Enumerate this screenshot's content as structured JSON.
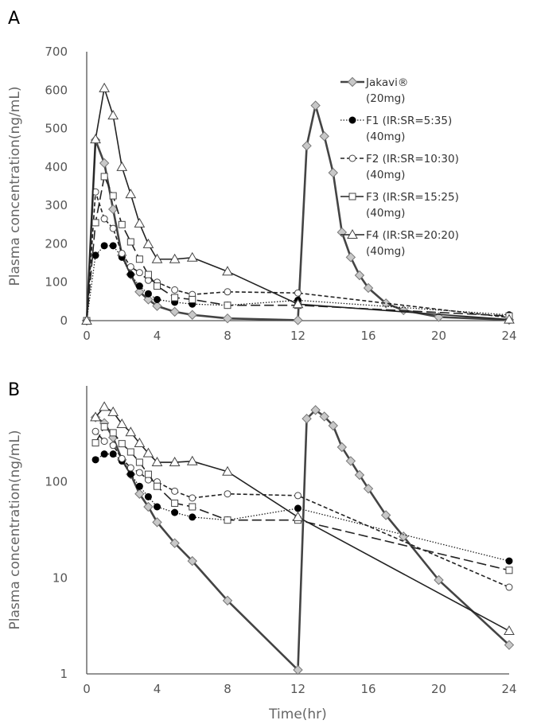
{
  "chart_data": [
    {
      "panel": "A",
      "type": "line",
      "yscale": "linear",
      "ylabel": "Plasma concentration(ng/mL)",
      "xlabel": "",
      "xlim": [
        0,
        24
      ],
      "ylim": [
        0,
        700
      ],
      "xticks": [
        0,
        4,
        8,
        12,
        16,
        20,
        24
      ],
      "yticks": [
        0,
        100,
        200,
        300,
        400,
        500,
        600,
        700
      ],
      "legend_position": "top-right"
    },
    {
      "panel": "B",
      "type": "line",
      "yscale": "log",
      "ylabel": "Plasma concentration(ng/mL)",
      "xlabel": "Time(hr)",
      "xlim": [
        0,
        24
      ],
      "ylim": [
        1,
        1000
      ],
      "xticks": [
        0,
        4,
        8,
        12,
        16,
        20,
        24
      ],
      "yticks": [
        1,
        10,
        100
      ]
    }
  ],
  "series": [
    {
      "name": "Jakavi®",
      "dose": "(20mg)",
      "marker": "diamond",
      "line": "solid-thick",
      "color": "#444444",
      "marker_fill": "#c8c8c8",
      "x": [
        0,
        0.5,
        1,
        1.5,
        2,
        2.5,
        3,
        3.5,
        4,
        5,
        6,
        8,
        12,
        12.5,
        13,
        13.5,
        14,
        14.5,
        15,
        15.5,
        16,
        17,
        18,
        20,
        24
      ],
      "y": [
        0,
        470,
        410,
        290,
        170,
        120,
        75,
        55,
        38,
        23,
        15,
        5.8,
        1.1,
        455,
        560,
        480,
        385,
        230,
        165,
        118,
        85,
        45,
        27,
        9.5,
        2
      ]
    },
    {
      "name": "F1 (IR:SR=5:35)",
      "dose": "(40mg)",
      "marker": "circle-filled",
      "line": "dotted",
      "color": "#222222",
      "marker_fill": "#000000",
      "x": [
        0,
        0.5,
        1,
        1.5,
        2,
        2.5,
        3,
        3.5,
        4,
        5,
        6,
        8,
        12,
        24
      ],
      "y": [
        0,
        170,
        195,
        195,
        165,
        120,
        90,
        70,
        55,
        48,
        43,
        40,
        53,
        15
      ]
    },
    {
      "name": "F2 (IR:SR=10:30)",
      "dose": "(40mg)",
      "marker": "circle-open",
      "line": "short-dash",
      "color": "#222222",
      "marker_fill": "#ffffff",
      "x": [
        0,
        0.5,
        1,
        1.5,
        2,
        2.5,
        3,
        3.5,
        4,
        5,
        6,
        8,
        12,
        24
      ],
      "y": [
        0,
        335,
        265,
        240,
        175,
        140,
        125,
        105,
        100,
        80,
        68,
        75,
        72,
        8
      ]
    },
    {
      "name": "F3 (IR:SR=15:25)",
      "dose": "(40mg)",
      "marker": "square-open",
      "line": "long-dash",
      "color": "#222222",
      "marker_fill": "#ffffff",
      "x": [
        0,
        0.5,
        1,
        1.5,
        2,
        2.5,
        3,
        3.5,
        4,
        5,
        6,
        8,
        12,
        24
      ],
      "y": [
        0,
        255,
        375,
        325,
        250,
        205,
        160,
        120,
        90,
        60,
        55,
        40,
        40,
        12
      ]
    },
    {
      "name": "F4 (IR:SR=20:20)",
      "dose": "(40mg)",
      "marker": "triangle-open",
      "line": "solid",
      "color": "#222222",
      "marker_fill": "#ffffff",
      "x": [
        0,
        0.5,
        1,
        1.5,
        2,
        2.5,
        3,
        3.5,
        4,
        5,
        6,
        8,
        12,
        24
      ],
      "y": [
        0,
        472,
        605,
        534,
        400,
        329,
        253,
        199,
        160,
        160,
        164,
        128,
        43,
        2.8
      ]
    }
  ]
}
